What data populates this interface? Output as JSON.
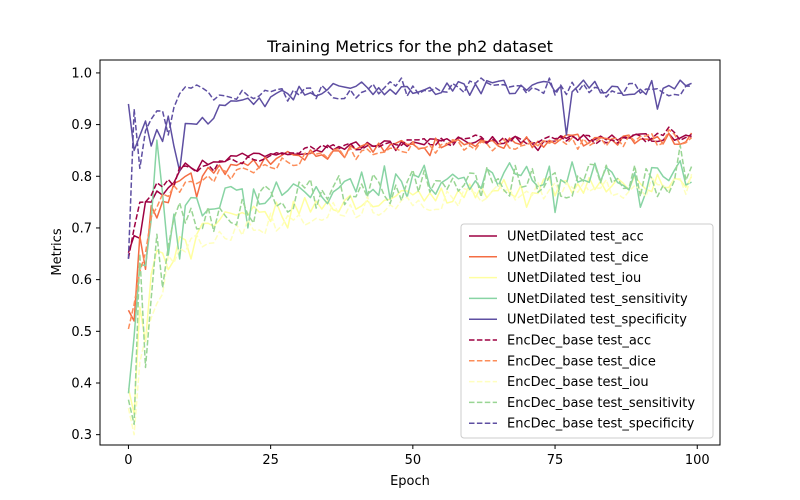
{
  "chart_data": {
    "type": "line",
    "title": "Training Metrics for the ph2 dataset",
    "xlabel": "Epoch",
    "ylabel": "Metrics",
    "xlim": [
      -5,
      104
    ],
    "ylim": [
      0.28,
      1.025
    ],
    "xticks": [
      0,
      25,
      50,
      75,
      100
    ],
    "yticks": [
      0.3,
      0.4,
      0.5,
      0.6,
      0.7,
      0.8,
      0.9,
      1.0
    ],
    "ytick_labels": [
      "0.3",
      "0.4",
      "0.5",
      "0.6",
      "0.7",
      "0.8",
      "0.9",
      "1.0"
    ],
    "grid": false,
    "legend_position": "lower-right",
    "x_range": [
      0,
      99
    ],
    "series": [
      {
        "name": "UNetDilated test_acc",
        "color": "#9e0142",
        "dash": "solid",
        "anchors": [
          [
            0,
            0.66
          ],
          [
            1,
            0.7
          ],
          [
            2,
            0.74
          ],
          [
            4,
            0.78
          ],
          [
            6,
            0.78
          ],
          [
            8,
            0.8
          ],
          [
            10,
            0.82
          ],
          [
            15,
            0.83
          ],
          [
            20,
            0.84
          ],
          [
            25,
            0.845
          ],
          [
            30,
            0.85
          ],
          [
            40,
            0.86
          ],
          [
            50,
            0.865
          ],
          [
            60,
            0.87
          ],
          [
            70,
            0.87
          ],
          [
            80,
            0.875
          ],
          [
            90,
            0.875
          ],
          [
            99,
            0.875
          ]
        ],
        "noise": 0.008,
        "spikes": [
          [
            2,
            0.68
          ],
          [
            4,
            0.75
          ],
          [
            12,
            0.81
          ],
          [
            47,
            0.85
          ],
          [
            72,
            0.85
          ]
        ]
      },
      {
        "name": "UNetDilated test_dice",
        "color": "#f46d43",
        "dash": "solid",
        "anchors": [
          [
            0,
            0.55
          ],
          [
            1,
            0.6
          ],
          [
            2,
            0.66
          ],
          [
            4,
            0.72
          ],
          [
            6,
            0.76
          ],
          [
            8,
            0.78
          ],
          [
            10,
            0.8
          ],
          [
            15,
            0.81
          ],
          [
            20,
            0.82
          ],
          [
            25,
            0.83
          ],
          [
            30,
            0.84
          ],
          [
            40,
            0.85
          ],
          [
            50,
            0.86
          ],
          [
            60,
            0.865
          ],
          [
            70,
            0.865
          ],
          [
            80,
            0.87
          ],
          [
            90,
            0.87
          ],
          [
            99,
            0.875
          ]
        ],
        "noise": 0.012,
        "spikes": [
          [
            1,
            0.52
          ],
          [
            3,
            0.62
          ],
          [
            12,
            0.76
          ],
          [
            53,
            0.84
          ]
        ]
      },
      {
        "name": "UNetDilated test_iou",
        "color": "#ffffa0",
        "dash": "solid",
        "anchors": [
          [
            0,
            0.4
          ],
          [
            1,
            0.45
          ],
          [
            2,
            0.52
          ],
          [
            4,
            0.6
          ],
          [
            6,
            0.64
          ],
          [
            8,
            0.67
          ],
          [
            10,
            0.69
          ],
          [
            15,
            0.71
          ],
          [
            20,
            0.72
          ],
          [
            25,
            0.73
          ],
          [
            30,
            0.74
          ],
          [
            40,
            0.75
          ],
          [
            50,
            0.76
          ],
          [
            60,
            0.77
          ],
          [
            70,
            0.78
          ],
          [
            80,
            0.78
          ],
          [
            90,
            0.785
          ],
          [
            99,
            0.79
          ]
        ],
        "noise": 0.018,
        "spikes": [
          [
            1,
            0.34
          ],
          [
            3,
            0.48
          ],
          [
            11,
            0.64
          ],
          [
            28,
            0.7
          ],
          [
            70,
            0.74
          ]
        ]
      },
      {
        "name": "UNetDilated test_sensitivity",
        "color": "#88d4a4",
        "dash": "solid",
        "anchors": [
          [
            0,
            0.38
          ],
          [
            1,
            0.5
          ],
          [
            2,
            0.6
          ],
          [
            3,
            0.65
          ],
          [
            5,
            0.7
          ],
          [
            8,
            0.72
          ],
          [
            10,
            0.74
          ],
          [
            15,
            0.75
          ],
          [
            20,
            0.76
          ],
          [
            25,
            0.77
          ],
          [
            30,
            0.77
          ],
          [
            40,
            0.78
          ],
          [
            50,
            0.79
          ],
          [
            60,
            0.8
          ],
          [
            70,
            0.8
          ],
          [
            80,
            0.8
          ],
          [
            90,
            0.8
          ],
          [
            99,
            0.79
          ]
        ],
        "noise": 0.03,
        "spikes": [
          [
            0,
            0.38
          ],
          [
            5,
            0.87
          ],
          [
            9,
            0.64
          ],
          [
            21,
            0.7
          ],
          [
            45,
            0.82
          ],
          [
            75,
            0.73
          ],
          [
            90,
            0.74
          ],
          [
            97,
            0.83
          ]
        ]
      },
      {
        "name": "UNetDilated test_specificity",
        "color": "#5e4fa2",
        "dash": "solid",
        "anchors": [
          [
            0,
            0.94
          ],
          [
            1,
            0.85
          ],
          [
            2,
            0.88
          ],
          [
            3,
            0.9
          ],
          [
            5,
            0.88
          ],
          [
            8,
            0.89
          ],
          [
            10,
            0.9
          ],
          [
            15,
            0.92
          ],
          [
            20,
            0.94
          ],
          [
            25,
            0.95
          ],
          [
            30,
            0.96
          ],
          [
            40,
            0.97
          ],
          [
            50,
            0.97
          ],
          [
            60,
            0.97
          ],
          [
            70,
            0.975
          ],
          [
            80,
            0.975
          ],
          [
            90,
            0.97
          ],
          [
            99,
            0.98
          ]
        ],
        "noise": 0.015,
        "spikes": [
          [
            0,
            0.94
          ],
          [
            1,
            0.85
          ],
          [
            9,
            0.81
          ],
          [
            77,
            0.88
          ],
          [
            93,
            0.93
          ],
          [
            98,
            0.975
          ],
          [
            99,
            0.98
          ]
        ]
      },
      {
        "name": "EncDec_base test_acc",
        "color": "#9e0142",
        "dash": "dashed",
        "anchors": [
          [
            0,
            0.64
          ],
          [
            1,
            0.7
          ],
          [
            2,
            0.74
          ],
          [
            4,
            0.76
          ],
          [
            6,
            0.78
          ],
          [
            8,
            0.8
          ],
          [
            10,
            0.81
          ],
          [
            15,
            0.82
          ],
          [
            20,
            0.83
          ],
          [
            25,
            0.84
          ],
          [
            30,
            0.85
          ],
          [
            40,
            0.86
          ],
          [
            50,
            0.865
          ],
          [
            60,
            0.87
          ],
          [
            70,
            0.87
          ],
          [
            80,
            0.87
          ],
          [
            90,
            0.875
          ],
          [
            99,
            0.88
          ]
        ],
        "noise": 0.01,
        "spikes": [
          [
            95,
            0.895
          ]
        ]
      },
      {
        "name": "EncDec_base test_dice",
        "color": "#fc8d59",
        "dash": "dashed",
        "anchors": [
          [
            0,
            0.5
          ],
          [
            1,
            0.56
          ],
          [
            2,
            0.62
          ],
          [
            4,
            0.7
          ],
          [
            6,
            0.74
          ],
          [
            8,
            0.77
          ],
          [
            10,
            0.79
          ],
          [
            15,
            0.8
          ],
          [
            20,
            0.81
          ],
          [
            25,
            0.82
          ],
          [
            30,
            0.83
          ],
          [
            40,
            0.845
          ],
          [
            50,
            0.855
          ],
          [
            60,
            0.86
          ],
          [
            70,
            0.86
          ],
          [
            80,
            0.865
          ],
          [
            90,
            0.87
          ],
          [
            99,
            0.875
          ]
        ],
        "noise": 0.013,
        "spikes": [
          [
            95,
            0.89
          ]
        ]
      },
      {
        "name": "EncDec_base test_iou",
        "color": "#ffffbf",
        "dash": "dashed",
        "anchors": [
          [
            0,
            0.34
          ],
          [
            1,
            0.4
          ],
          [
            2,
            0.46
          ],
          [
            4,
            0.56
          ],
          [
            6,
            0.6
          ],
          [
            8,
            0.64
          ],
          [
            10,
            0.66
          ],
          [
            15,
            0.69
          ],
          [
            20,
            0.7
          ],
          [
            25,
            0.71
          ],
          [
            30,
            0.72
          ],
          [
            40,
            0.74
          ],
          [
            50,
            0.75
          ],
          [
            60,
            0.76
          ],
          [
            70,
            0.77
          ],
          [
            80,
            0.77
          ],
          [
            90,
            0.78
          ],
          [
            99,
            0.785
          ]
        ],
        "noise": 0.02,
        "spikes": [
          [
            1,
            0.3
          ],
          [
            2,
            0.44
          ]
        ]
      },
      {
        "name": "EncDec_base test_sensitivity",
        "color": "#99d594",
        "dash": "dashed",
        "anchors": [
          [
            0,
            0.34
          ],
          [
            1,
            0.45
          ],
          [
            2,
            0.55
          ],
          [
            3,
            0.6
          ],
          [
            5,
            0.64
          ],
          [
            8,
            0.68
          ],
          [
            10,
            0.7
          ],
          [
            15,
            0.72
          ],
          [
            20,
            0.74
          ],
          [
            25,
            0.75
          ],
          [
            30,
            0.76
          ],
          [
            40,
            0.77
          ],
          [
            50,
            0.78
          ],
          [
            60,
            0.78
          ],
          [
            70,
            0.79
          ],
          [
            80,
            0.79
          ],
          [
            90,
            0.79
          ],
          [
            99,
            0.8
          ]
        ],
        "noise": 0.035,
        "spikes": [
          [
            1,
            0.32
          ],
          [
            2,
            0.65
          ],
          [
            3,
            0.43
          ],
          [
            97,
            0.86
          ]
        ]
      },
      {
        "name": "EncDec_base test_specificity",
        "color": "#5e4fa2",
        "dash": "dashed",
        "anchors": [
          [
            0,
            0.64
          ],
          [
            1,
            0.93
          ],
          [
            2,
            0.8
          ],
          [
            3,
            0.92
          ],
          [
            5,
            0.9
          ],
          [
            8,
            0.92
          ],
          [
            9,
            0.97
          ],
          [
            15,
            0.96
          ],
          [
            20,
            0.96
          ],
          [
            25,
            0.96
          ],
          [
            30,
            0.96
          ],
          [
            40,
            0.965
          ],
          [
            50,
            0.97
          ],
          [
            60,
            0.97
          ],
          [
            70,
            0.97
          ],
          [
            80,
            0.97
          ],
          [
            90,
            0.965
          ],
          [
            99,
            0.97
          ]
        ],
        "noise": 0.015,
        "spikes": [
          [
            0,
            0.64
          ],
          [
            1,
            0.93
          ],
          [
            7,
            0.88
          ],
          [
            48,
            0.99
          ],
          [
            62,
            0.99
          ],
          [
            74,
            0.99
          ]
        ]
      }
    ]
  }
}
